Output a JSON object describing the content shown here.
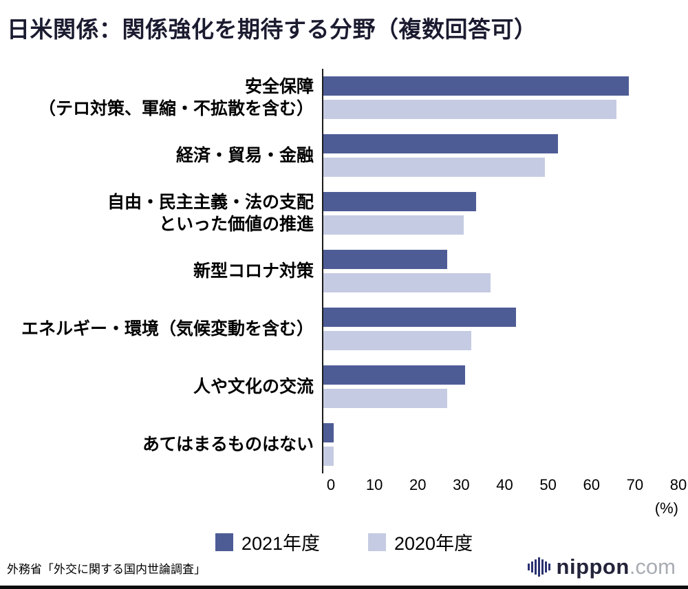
{
  "title": "日米関係：関係強化を期待する分野（複数回答可）",
  "chart_data": {
    "type": "bar",
    "orientation": "horizontal",
    "title": "日米関係：関係強化を期待する分野（複数回答可）",
    "categories": [
      "安全保障\n（テロ対策、軍縮・不拡散を含む）",
      "経済・貿易・金融",
      "自由・民主主義・法の支配\nといった価値の推進",
      "新型コロナ対策",
      "エネルギー・環境（気候変動を含む）",
      "人や文化の交流",
      "あてはまるものはない"
    ],
    "series": [
      {
        "name": "2021年度",
        "color": "#4e5c96",
        "values": [
          70.3,
          54.0,
          35.2,
          28.5,
          44.3,
          32.7,
          2.4
        ]
      },
      {
        "name": "2020年度",
        "color": "#c5cbe2",
        "values": [
          67.5,
          51.0,
          32.3,
          38.5,
          34.0,
          28.5,
          2.4
        ]
      }
    ],
    "xlim": [
      0,
      80
    ],
    "xticks": [
      "0",
      "10",
      "20",
      "30",
      "40",
      "50",
      "60",
      "70",
      "80"
    ],
    "x_unit": "(%)",
    "grid": false,
    "legend_position": "bottom"
  },
  "source": "外務省「外交に関する国内世論調査」",
  "logo": {
    "name": "nippon",
    "tld": ".com"
  }
}
